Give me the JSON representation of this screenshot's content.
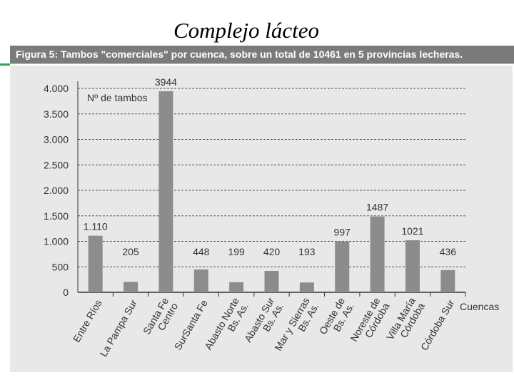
{
  "slide": {
    "title": "Complejo lácteo"
  },
  "figure": {
    "caption": "Figura 5: Tambos \"comerciales\" por cuenca, sobre un total de 10461 en 5 provincias lecheras."
  },
  "chart_data": {
    "type": "bar",
    "ylabel": "Nº de tambos",
    "xlabel": "Cuencas",
    "ylim": [
      0,
      4000
    ],
    "yticks": [
      {
        "value": 0,
        "label": "0"
      },
      {
        "value": 500,
        "label": "500"
      },
      {
        "value": 1000,
        "label": "1.000"
      },
      {
        "value": 1500,
        "label": "1.500"
      },
      {
        "value": 2000,
        "label": "2.000"
      },
      {
        "value": 2500,
        "label": "2.500"
      },
      {
        "value": 3000,
        "label": "3.000"
      },
      {
        "value": 3500,
        "label": "3.500"
      },
      {
        "value": 4000,
        "label": "4.000"
      }
    ],
    "grid": "dashed horizontal",
    "categories": [
      [
        "Entre Ríos"
      ],
      [
        "La Pampa Sur"
      ],
      [
        "Santa Fe",
        "Centro"
      ],
      [
        "SurSanta Fe"
      ],
      [
        "Abasto Norte",
        "Bs. As."
      ],
      [
        "Abasto Sur",
        "Bs. As."
      ],
      [
        "Mar y Sierras",
        "Bs. As."
      ],
      [
        "Oeste de",
        "Bs. As."
      ],
      [
        "Noreste de",
        "Córdoba"
      ],
      [
        "Villa María",
        "Córdoba"
      ],
      [
        "Córdoba Sur"
      ]
    ],
    "values": [
      1110,
      205,
      3944,
      448,
      199,
      420,
      193,
      997,
      1487,
      1021,
      436
    ],
    "value_labels": [
      "1.110",
      "205",
      "3944",
      "448",
      "199",
      "420",
      "193",
      "997",
      "1487",
      "1021",
      "436"
    ],
    "colors": {
      "bar": "#8c8c8e",
      "grid": "#555555",
      "axis": "#333333",
      "panel": "#e8e8e8"
    }
  }
}
